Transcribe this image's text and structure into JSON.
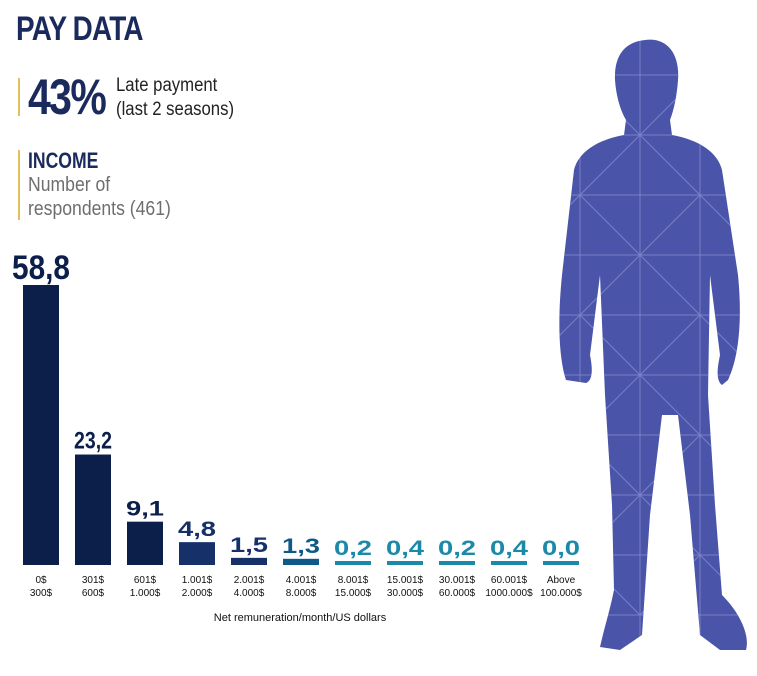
{
  "header": {
    "title": "PAY DATA"
  },
  "stat": {
    "value": "43%",
    "label_line1": "Late payment",
    "label_line2": "(last 2 seasons)"
  },
  "income": {
    "title": "INCOME",
    "subtitle_line1": "Number of",
    "subtitle_line2": "respondents (461)"
  },
  "colors": {
    "title": "#1a2a5c",
    "accent": "#e2c15a",
    "dark_bar": "#0c1f4b",
    "teal_bar": "#1b8aa8",
    "figure": "#4a54a8"
  },
  "chart_data": {
    "type": "bar",
    "xlabel": "Net remuneration/month/US dollars",
    "ylabel": "",
    "categories": [
      [
        "0$",
        "300$"
      ],
      [
        "301$",
        "600$"
      ],
      [
        "601$",
        "1.000$"
      ],
      [
        "1.001$",
        "2.000$"
      ],
      [
        "2.001$",
        "4.000$"
      ],
      [
        "4.001$",
        "8.000$"
      ],
      [
        "8.001$",
        "15.000$"
      ],
      [
        "15.001$",
        "30.000$"
      ],
      [
        "30.001$",
        "60.000$"
      ],
      [
        "60.001$",
        "1000.000$"
      ],
      [
        "Above",
        "100.000$"
      ]
    ],
    "values": [
      58.8,
      23.2,
      9.1,
      4.8,
      1.5,
      1.3,
      0.2,
      0.4,
      0.2,
      0.4,
      0.0
    ],
    "value_labels": [
      "58,8",
      "23,2",
      "9,1",
      "4,8",
      "1,5",
      "1,3",
      "0,2",
      "0,4",
      "0,2",
      "0,4",
      "0,0"
    ],
    "bar_colors": [
      "#0c1f4b",
      "#0c1f4b",
      "#0c1f4b",
      "#16306a",
      "#16306a",
      "#0e5a86",
      "#1b8aa8",
      "#1b8aa8",
      "#1b8aa8",
      "#1b8aa8",
      "#1b8aa8"
    ],
    "ylim": [
      0,
      58.8
    ],
    "grid": false,
    "legend": "none"
  }
}
